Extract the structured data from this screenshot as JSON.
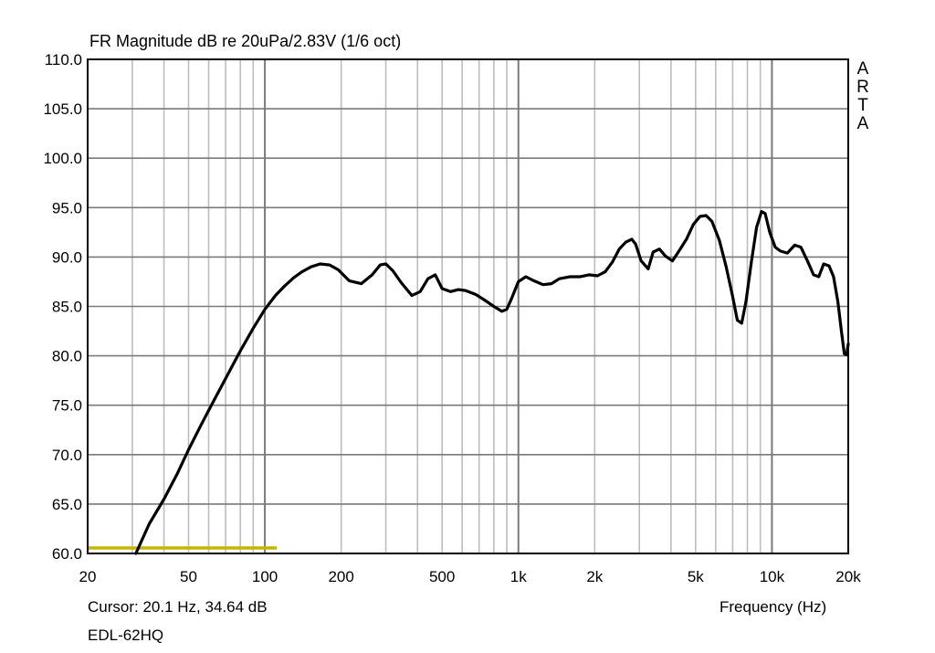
{
  "chart_data": {
    "type": "line",
    "title": "FR Magnitude dB re 20uPa/2.83V (1/6 oct)",
    "xlabel": "Frequency (Hz)",
    "ylabel": "",
    "xscale": "log",
    "xlim": [
      20,
      20000
    ],
    "ylim": [
      60,
      110
    ],
    "grid": true,
    "y_ticks": [
      "110.0",
      "105.0",
      "100.0",
      "95.0",
      "90.0",
      "85.0",
      "80.0",
      "75.0",
      "70.0",
      "65.0",
      "60.0"
    ],
    "x_ticks": [
      {
        "value": 20,
        "label": "20"
      },
      {
        "value": 50,
        "label": "50"
      },
      {
        "value": 100,
        "label": "100"
      },
      {
        "value": 200,
        "label": "200"
      },
      {
        "value": 500,
        "label": "500"
      },
      {
        "value": 1000,
        "label": "1k"
      },
      {
        "value": 2000,
        "label": "2k"
      },
      {
        "value": 5000,
        "label": "5k"
      },
      {
        "value": 10000,
        "label": "10k"
      },
      {
        "value": 20000,
        "label": "20k"
      }
    ],
    "series": [
      {
        "name": "EDL-62HQ",
        "color": "#000000",
        "x": [
          31,
          35,
          40,
          45,
          50,
          56,
          63,
          71,
          80,
          90,
          100,
          110,
          120,
          130,
          140,
          152,
          165,
          180,
          195,
          215,
          240,
          265,
          285,
          300,
          320,
          345,
          380,
          410,
          440,
          470,
          500,
          540,
          580,
          620,
          680,
          740,
          800,
          860,
          900,
          940,
          1000,
          1070,
          1150,
          1250,
          1350,
          1450,
          1600,
          1750,
          1900,
          2050,
          2200,
          2350,
          2500,
          2650,
          2800,
          2900,
          3050,
          3250,
          3400,
          3600,
          3800,
          4050,
          4300,
          4600,
          4900,
          5200,
          5500,
          5800,
          6200,
          6600,
          7000,
          7300,
          7600,
          7900,
          8300,
          8700,
          9100,
          9400,
          9800,
          10300,
          10800,
          11500,
          12300,
          13000,
          13800,
          14600,
          15300,
          16000,
          16800,
          17500,
          18200,
          18800,
          19300,
          19700,
          20000
        ],
        "y": [
          60,
          63,
          65.5,
          68,
          70.5,
          73,
          75.5,
          78,
          80.5,
          82.8,
          84.7,
          86.1,
          87.1,
          87.9,
          88.5,
          89,
          89.3,
          89.2,
          88.7,
          87.6,
          87.3,
          88.2,
          89.2,
          89.3,
          88.6,
          87.4,
          86.1,
          86.5,
          87.8,
          88.2,
          86.8,
          86.5,
          86.7,
          86.6,
          86.2,
          85.6,
          85,
          84.5,
          84.7,
          85.8,
          87.5,
          88,
          87.6,
          87.2,
          87.3,
          87.8,
          88,
          88,
          88.2,
          88.1,
          88.5,
          89.5,
          90.8,
          91.5,
          91.8,
          91.3,
          89.6,
          88.8,
          90.5,
          90.8,
          90.1,
          89.6,
          90.6,
          91.8,
          93.3,
          94.1,
          94.2,
          93.6,
          91.7,
          89,
          86,
          83.6,
          83.3,
          85.5,
          89.5,
          93,
          94.6,
          94.4,
          92.5,
          91,
          90.6,
          90.4,
          91.2,
          91,
          89.6,
          88.2,
          88,
          89.3,
          89.1,
          88,
          85.5,
          82.5,
          80.2,
          80.1,
          81.2
        ]
      }
    ],
    "cursor": {
      "frequency_hz": 20.1,
      "level_db": 34.64,
      "color": "#c8b400"
    }
  },
  "header": {
    "title": "FR Magnitude dB re 20uPa/2.83V (1/6 oct)",
    "watermark": [
      "A",
      "R",
      "T",
      "A"
    ]
  },
  "footer": {
    "cursor_readout": "Cursor: 20.1 Hz, 34.64 dB",
    "device_name": "EDL-62HQ",
    "x_axis_title": "Frequency (Hz)"
  },
  "colors": {
    "curve": "#000000",
    "grid_major": "#7a7a7a",
    "grid_minor": "#bdbdbd",
    "cursor_line": "#c8b400",
    "frame": "#000000"
  }
}
